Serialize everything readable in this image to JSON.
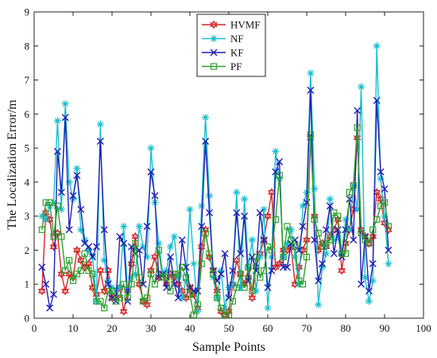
{
  "chart_data": {
    "type": "line",
    "title": "",
    "xlabel": "Sample Points",
    "ylabel": "The Localization Error/m",
    "xlim": [
      0,
      100
    ],
    "ylim": [
      0,
      9
    ],
    "xticks": [
      0,
      10,
      20,
      30,
      40,
      50,
      60,
      70,
      80,
      90,
      100
    ],
    "yticks": [
      0,
      1,
      2,
      3,
      4,
      5,
      6,
      7,
      8,
      9
    ],
    "grid": false,
    "legend_position": "top-center",
    "x": [
      2,
      3,
      4,
      5,
      6,
      7,
      8,
      9,
      10,
      11,
      12,
      13,
      14,
      15,
      16,
      17,
      18,
      19,
      20,
      21,
      22,
      23,
      24,
      25,
      26,
      27,
      28,
      29,
      30,
      31,
      32,
      33,
      34,
      35,
      36,
      37,
      38,
      39,
      40,
      41,
      42,
      43,
      44,
      45,
      46,
      47,
      48,
      49,
      50,
      51,
      52,
      53,
      54,
      55,
      56,
      57,
      58,
      59,
      60,
      61,
      62,
      63,
      64,
      65,
      66,
      67,
      68,
      69,
      70,
      71,
      72,
      73,
      74,
      75,
      76,
      77,
      78,
      79,
      80,
      81,
      82,
      83,
      84,
      85,
      86,
      87,
      88,
      89,
      90,
      91
    ],
    "series": [
      {
        "name": "HVMF",
        "color": "#d62728",
        "marker": "hexagram",
        "values": [
          0.8,
          3.1,
          2.9,
          2.1,
          2.5,
          1.3,
          0.8,
          1.3,
          1.2,
          2.0,
          1.7,
          1.5,
          1.6,
          0.9,
          0.7,
          1.4,
          0.8,
          1.4,
          0.6,
          0.6,
          0.9,
          0.2,
          0.8,
          1.6,
          2.4,
          1.0,
          0.5,
          0.4,
          1.4,
          1.8,
          1.2,
          1.3,
          1.0,
          1.3,
          1.2,
          1.0,
          0.8,
          0.6,
          0.9,
          0.7,
          0.3,
          2.1,
          2.6,
          1.8,
          1.4,
          0.8,
          0.2,
          0.1,
          0.2,
          1.0,
          1.7,
          1.3,
          1.0,
          1.2,
          0.6,
          1.5,
          1.9,
          2.3,
          3.0,
          3.7,
          1.5,
          1.6,
          2.0,
          2.0,
          2.1,
          1.0,
          1.5,
          2.0,
          2.3,
          5.3,
          3.0,
          2.0,
          2.2,
          2.1,
          2.4,
          2.6,
          2.9,
          1.4,
          2.2,
          2.6,
          3.2,
          5.3,
          2.6,
          2.4,
          2.2,
          2.4,
          3.7,
          3.5,
          2.8,
          2.6
        ]
      },
      {
        "name": "NF",
        "color": "#17becf",
        "marker": "asterisk",
        "values": [
          3.0,
          2.9,
          3.3,
          3.4,
          5.8,
          3.2,
          6.3,
          4.0,
          3.5,
          4.4,
          2.6,
          2.3,
          2.0,
          1.8,
          0.5,
          5.7,
          1.7,
          1.1,
          0.9,
          0.8,
          0.9,
          2.7,
          0.8,
          1.2,
          1.3,
          2.7,
          2.1,
          1.8,
          5.0,
          3.4,
          2.2,
          1.3,
          1.4,
          2.1,
          2.4,
          1.2,
          0.6,
          1.1,
          3.2,
          1.6,
          0.2,
          3.3,
          5.9,
          3.6,
          1.2,
          0.6,
          1.4,
          0.3,
          0.9,
          1.0,
          3.7,
          0.9,
          3.5,
          1.5,
          2.3,
          0.8,
          1.8,
          3.2,
          0.3,
          1.8,
          4.9,
          4.1,
          1.8,
          2.2,
          2.6,
          1.8,
          1.0,
          3.3,
          3.7,
          7.2,
          3.8,
          0.4,
          1.5,
          1.9,
          3.5,
          2.3,
          2.4,
          1.9,
          2.9,
          2.6,
          3.9,
          3.2,
          6.8,
          1.2,
          0.5,
          1.1,
          8.0,
          4.1,
          3.0,
          1.6
        ]
      },
      {
        "name": "KF",
        "color": "#1f1fb4",
        "marker": "x",
        "values": [
          1.5,
          1.0,
          0.3,
          0.7,
          4.9,
          3.7,
          5.9,
          2.6,
          3.6,
          4.2,
          3.2,
          2.2,
          2.1,
          1.8,
          2.1,
          5.2,
          2.6,
          1.0,
          0.6,
          0.5,
          2.4,
          2.2,
          0.5,
          2.1,
          1.9,
          2.0,
          1.0,
          2.7,
          4.3,
          3.6,
          1.2,
          1.3,
          0.9,
          1.8,
          1.0,
          0.6,
          2.3,
          1.5,
          0.9,
          0.8,
          0.8,
          2.7,
          5.2,
          3.1,
          1.4,
          1.1,
          1.3,
          1.9,
          0.6,
          1.4,
          3.1,
          1.9,
          3.0,
          1.1,
          1.8,
          1.4,
          3.1,
          2.3,
          0.9,
          1.4,
          4.3,
          4.6,
          1.5,
          1.5,
          2.2,
          2.3,
          2.0,
          2.7,
          3.4,
          6.7,
          2.3,
          1.1,
          1.6,
          2.6,
          3.3,
          1.9,
          2.6,
          1.8,
          2.6,
          3.5,
          2.3,
          6.1,
          1.0,
          2.4,
          0.8,
          1.6,
          6.4,
          4.3,
          3.8,
          2.0
        ]
      },
      {
        "name": "PF",
        "color": "#2ca02c",
        "marker": "square",
        "values": [
          2.6,
          3.4,
          3.4,
          2.4,
          3.3,
          2.4,
          1.4,
          1.7,
          1.1,
          1.3,
          1.4,
          1.9,
          1.4,
          1.3,
          0.5,
          0.5,
          0.3,
          0.8,
          0.8,
          0.5,
          0.6,
          1.0,
          0.6,
          1.0,
          2.2,
          1.2,
          0.5,
          0.6,
          1.3,
          1.0,
          2.0,
          1.2,
          1.2,
          0.8,
          1.3,
          1.3,
          1.5,
          1.2,
          0.7,
          0.1,
          0.4,
          1.6,
          2.5,
          1.9,
          1.3,
          0.6,
          0.3,
          0.1,
          0.1,
          0.5,
          0.9,
          1.3,
          0.9,
          1.5,
          0.8,
          1.8,
          1.2,
          1.4,
          2.1,
          2.0,
          2.9,
          4.2,
          1.8,
          2.7,
          2.3,
          2.1,
          1.1,
          1.0,
          1.8,
          5.4,
          2.9,
          2.5,
          2.1,
          2.2,
          2.3,
          3.1,
          3.0,
          1.9,
          1.9,
          3.7,
          3.9,
          5.6,
          2.5,
          2.3,
          2.2,
          2.6,
          2.9,
          3.3,
          3.4,
          2.7
        ]
      }
    ]
  }
}
